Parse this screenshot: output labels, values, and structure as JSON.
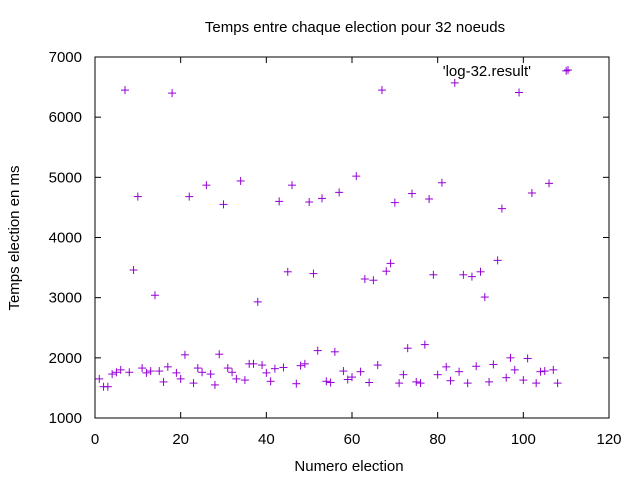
{
  "chart_data": {
    "type": "scatter",
    "title": "Temps entre chaque election pour 32 noeuds",
    "xlabel": "Numero election",
    "ylabel": "Temps election en ms",
    "xlim": [
      0,
      120
    ],
    "ylim": [
      1000,
      7000
    ],
    "xticks": [
      "0",
      "20",
      "40",
      "60",
      "80",
      "100",
      "120"
    ],
    "yticks": [
      "1000",
      "2000",
      "3000",
      "4000",
      "5000",
      "6000",
      "7000"
    ],
    "grid": false,
    "legend_position": "top-right",
    "marker": "plus",
    "series": [
      {
        "name": "'log-32.result'",
        "color": "#9400d3",
        "x": [
          1,
          2,
          3,
          4,
          5,
          6,
          7,
          8,
          9,
          10,
          11,
          12,
          13,
          14,
          15,
          16,
          17,
          18,
          19,
          20,
          21,
          22,
          23,
          24,
          25,
          26,
          27,
          28,
          29,
          30,
          31,
          32,
          33,
          34,
          35,
          36,
          37,
          38,
          39,
          40,
          41,
          42,
          43,
          44,
          45,
          46,
          47,
          48,
          49,
          50,
          51,
          52,
          53,
          54,
          55,
          56,
          57,
          58,
          59,
          60,
          61,
          62,
          63,
          64,
          65,
          66,
          67,
          68,
          69,
          70,
          71,
          72,
          73,
          74,
          75,
          76,
          77,
          78,
          79,
          80,
          81,
          82,
          83,
          84,
          85,
          86,
          87,
          88,
          89,
          90,
          91,
          92,
          93,
          94,
          95,
          96,
          97,
          98,
          99,
          100,
          101,
          102,
          103,
          104,
          105,
          106,
          107,
          108,
          110
        ],
        "y": [
          1650,
          1520,
          1520,
          1730,
          1760,
          1800,
          6450,
          1760,
          3460,
          4680,
          1830,
          1750,
          1780,
          3040,
          1780,
          1600,
          1850,
          6400,
          1750,
          1650,
          2050,
          4680,
          1580,
          1830,
          1760,
          4870,
          1730,
          1550,
          2060,
          4550,
          1830,
          1760,
          1650,
          4940,
          1630,
          1900,
          1900,
          2930,
          1880,
          1750,
          1610,
          1820,
          4600,
          1840,
          3430,
          4870,
          1570,
          1870,
          1900,
          4590,
          3400,
          2120,
          4650,
          1610,
          1590,
          2100,
          4750,
          1780,
          1640,
          1680,
          5020,
          1770,
          3310,
          1590,
          3290,
          1880,
          6450,
          3440,
          3570,
          4580,
          1580,
          1720,
          2160,
          4730,
          1600,
          1580,
          2220,
          4640,
          3380,
          1720,
          4910,
          1850,
          1620,
          6570,
          1770,
          3380,
          1580,
          3350,
          1860,
          3430,
          3010,
          1600,
          1890,
          3620,
          4480,
          1670,
          2000,
          1800,
          6410,
          1630,
          1990,
          4740,
          1580,
          1770,
          1780,
          4900,
          1800,
          1580,
          6770
        ]
      }
    ]
  }
}
